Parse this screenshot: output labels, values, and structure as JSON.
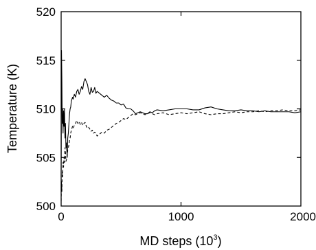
{
  "chart_data": {
    "type": "line",
    "title": "",
    "xlabel": "MD steps (10",
    "xlabel_sup": "3",
    "xlabel_close": ")",
    "ylabel": "Temperature (K)",
    "xlim": [
      0,
      2000
    ],
    "ylim": [
      500,
      520
    ],
    "x_ticks": [
      0,
      1000,
      2000
    ],
    "y_ticks": [
      500,
      505,
      510,
      515,
      520
    ],
    "x_tick_labels": [
      "0",
      "1000",
      "2000"
    ],
    "y_tick_labels": [
      "500",
      "505",
      "510",
      "515",
      "520"
    ],
    "grid": false,
    "legend": "none",
    "series": [
      {
        "style": "solid",
        "color": "#000000",
        "x": [
          0,
          3,
          6,
          9,
          12,
          16,
          20,
          24,
          28,
          32,
          36,
          40,
          45,
          50,
          55,
          60,
          65,
          70,
          75,
          80,
          85,
          90,
          95,
          100,
          110,
          120,
          130,
          140,
          150,
          160,
          170,
          180,
          190,
          200,
          210,
          220,
          230,
          240,
          250,
          260,
          270,
          280,
          290,
          300,
          320,
          340,
          360,
          380,
          400,
          420,
          440,
          460,
          480,
          500,
          520,
          540,
          560,
          580,
          600,
          620,
          640,
          660,
          680,
          700,
          720,
          740,
          760,
          780,
          800,
          850,
          900,
          950,
          1000,
          1050,
          1100,
          1150,
          1200,
          1250,
          1300,
          1350,
          1400,
          1450,
          1500,
          1550,
          1600,
          1650,
          1700,
          1750,
          1800,
          1850,
          1900,
          1950,
          2000
        ],
        "y": [
          503.0,
          516.0,
          513.0,
          508.5,
          510.0,
          507.5,
          509.8,
          508.2,
          510.0,
          507.0,
          508.5,
          506.0,
          506.5,
          505.0,
          507.0,
          507.5,
          508.5,
          509.5,
          510.0,
          510.2,
          510.8,
          511.0,
          511.2,
          511.0,
          511.5,
          511.2,
          511.8,
          512.0,
          511.5,
          511.8,
          512.3,
          512.0,
          512.8,
          513.1,
          512.8,
          512.5,
          511.8,
          511.5,
          512.2,
          511.7,
          511.8,
          512.2,
          511.6,
          511.8,
          511.6,
          511.4,
          511.2,
          511.4,
          511.1,
          510.9,
          510.8,
          510.6,
          510.6,
          510.4,
          510.5,
          510.1,
          510.0,
          510.0,
          509.8,
          509.5,
          509.6,
          509.7,
          509.6,
          509.5,
          509.5,
          509.7,
          509.6,
          509.8,
          509.9,
          509.8,
          509.9,
          510.0,
          510.0,
          510.0,
          509.9,
          509.9,
          510.1,
          510.2,
          510.0,
          509.9,
          509.8,
          509.8,
          509.9,
          509.8,
          509.8,
          509.7,
          509.8,
          509.7,
          509.7,
          509.7,
          509.7,
          509.6,
          509.7
        ]
      },
      {
        "style": "dashed",
        "color": "#000000",
        "x": [
          0,
          3,
          6,
          9,
          12,
          16,
          20,
          24,
          28,
          32,
          36,
          40,
          45,
          50,
          55,
          60,
          65,
          70,
          75,
          80,
          85,
          90,
          95,
          100,
          110,
          120,
          130,
          140,
          150,
          160,
          170,
          180,
          190,
          200,
          210,
          220,
          230,
          240,
          250,
          260,
          270,
          280,
          290,
          300,
          320,
          340,
          360,
          380,
          400,
          420,
          440,
          460,
          480,
          500,
          520,
          540,
          560,
          580,
          600,
          620,
          640,
          660,
          680,
          700,
          720,
          740,
          760,
          780,
          800,
          850,
          900,
          950,
          1000,
          1050,
          1100,
          1150,
          1200,
          1250,
          1300,
          1350,
          1400,
          1450,
          1500,
          1550,
          1600,
          1650,
          1700,
          1750,
          1800,
          1850,
          1900,
          1950,
          2000
        ],
        "y": [
          500.5,
          502.5,
          501.5,
          503.5,
          503.0,
          504.5,
          504.0,
          505.0,
          504.5,
          506.0,
          505.5,
          504.6,
          504.8,
          505.0,
          505.8,
          506.0,
          506.3,
          506.8,
          507.0,
          507.5,
          507.8,
          508.0,
          508.2,
          508.0,
          508.3,
          508.5,
          508.8,
          508.5,
          508.7,
          508.4,
          508.6,
          508.3,
          508.5,
          508.6,
          508.2,
          508.0,
          508.1,
          507.9,
          507.7,
          507.8,
          507.5,
          507.6,
          507.5,
          507.2,
          507.4,
          507.6,
          507.5,
          507.8,
          507.9,
          508.1,
          508.3,
          508.5,
          508.6,
          508.8,
          509.0,
          508.9,
          509.1,
          509.3,
          509.5,
          509.4,
          509.5,
          509.6,
          509.5,
          509.4,
          509.5,
          509.6,
          509.5,
          509.4,
          509.5,
          509.6,
          509.4,
          509.5,
          509.6,
          509.5,
          509.6,
          509.7,
          509.5,
          509.4,
          509.5,
          509.5,
          509.6,
          509.7,
          509.6,
          509.7,
          509.7,
          509.8,
          509.7,
          509.8,
          509.8,
          509.9,
          509.8,
          509.8,
          509.9
        ]
      }
    ]
  }
}
